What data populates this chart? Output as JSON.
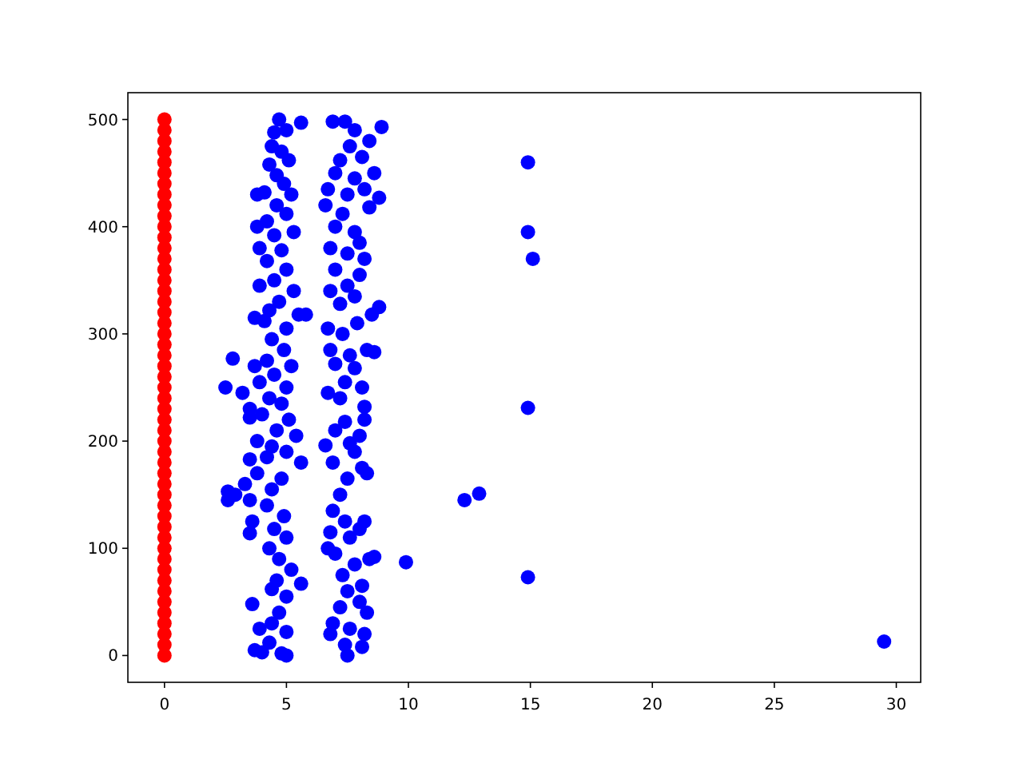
{
  "chart_data": {
    "type": "scatter",
    "xlim": [
      -1.5,
      31
    ],
    "ylim": [
      -25,
      525
    ],
    "xticks": [
      0,
      5,
      10,
      15,
      20,
      25,
      30
    ],
    "yticks": [
      0,
      100,
      200,
      300,
      400,
      500
    ],
    "grid": false,
    "marker": "circle",
    "series": [
      {
        "color": "#0000ff",
        "x": [
          4.7,
          4.5,
          5.0,
          5.6,
          4.4,
          4.8,
          4.3,
          5.1,
          4.6,
          4.9,
          5.2,
          4.1,
          3.8,
          4.6,
          5.0,
          4.2,
          3.8,
          4.5,
          5.3,
          3.9,
          4.8,
          4.2,
          5.0,
          4.5,
          3.9,
          5.3,
          4.7,
          4.3,
          5.5,
          5.8,
          3.7,
          4.1,
          5.0,
          4.4,
          4.9,
          4.2,
          5.2,
          3.7,
          2.8,
          4.5,
          3.9,
          5.0,
          2.5,
          3.2,
          4.3,
          4.8,
          3.5,
          4.0,
          5.1,
          3.5,
          4.6,
          5.4,
          3.8,
          4.4,
          5.0,
          4.2,
          3.5,
          5.6,
          3.8,
          4.8,
          3.3,
          4.4,
          2.6,
          2.9,
          3.5,
          2.6,
          4.2,
          4.9,
          3.6,
          4.5,
          3.5,
          5.0,
          4.3,
          4.7,
          5.2,
          4.6,
          5.6,
          4.4,
          5.0,
          3.6,
          4.7,
          4.4,
          5.0,
          3.9,
          4.3,
          3.7,
          4.0,
          4.8,
          5.0,
          6.9,
          7.4,
          7.8,
          8.9,
          8.4,
          7.6,
          7.2,
          8.1,
          7.0,
          7.8,
          8.6,
          6.7,
          7.5,
          8.2,
          8.8,
          6.6,
          7.3,
          8.4,
          7.0,
          7.8,
          8.0,
          6.8,
          7.5,
          8.2,
          7.0,
          8.0,
          7.5,
          6.8,
          7.8,
          7.2,
          8.8,
          8.5,
          7.9,
          6.7,
          7.3,
          6.8,
          7.6,
          8.3,
          8.6,
          7.0,
          7.8,
          7.4,
          8.1,
          6.7,
          7.2,
          8.2,
          8.2,
          7.4,
          7.0,
          8.0,
          7.6,
          6.6,
          7.8,
          6.9,
          8.1,
          7.5,
          8.3,
          7.2,
          6.9,
          7.4,
          8.2,
          6.8,
          7.6,
          8.0,
          6.7,
          7.0,
          8.4,
          8.6,
          7.8,
          7.3,
          8.1,
          7.5,
          8.0,
          7.2,
          8.3,
          6.9,
          7.6,
          8.2,
          6.8,
          7.4,
          8.1,
          7.5,
          9.9,
          12.3,
          12.9,
          14.9,
          14.9,
          15.1,
          14.9,
          14.9,
          29.5
        ],
        "values": [
          500,
          488,
          490,
          497,
          475,
          470,
          458,
          462,
          448,
          440,
          430,
          432,
          430,
          420,
          412,
          405,
          400,
          392,
          395,
          380,
          378,
          368,
          360,
          350,
          345,
          340,
          330,
          322,
          318,
          318,
          315,
          312,
          305,
          295,
          285,
          275,
          270,
          270,
          277,
          262,
          255,
          250,
          250,
          245,
          240,
          235,
          230,
          225,
          220,
          222,
          210,
          205,
          200,
          195,
          190,
          185,
          183,
          180,
          170,
          165,
          160,
          155,
          153,
          150,
          145,
          145,
          140,
          130,
          125,
          118,
          114,
          110,
          100,
          90,
          80,
          70,
          67,
          62,
          55,
          48,
          40,
          30,
          22,
          25,
          12,
          5,
          3,
          2,
          0,
          498,
          498,
          490,
          493,
          480,
          475,
          462,
          465,
          450,
          445,
          450,
          435,
          430,
          435,
          427,
          420,
          412,
          418,
          400,
          395,
          385,
          380,
          375,
          370,
          360,
          355,
          345,
          340,
          335,
          328,
          325,
          318,
          310,
          305,
          300,
          285,
          280,
          285,
          283,
          272,
          268,
          255,
          250,
          245,
          240,
          232,
          220,
          218,
          210,
          205,
          198,
          196,
          190,
          180,
          175,
          165,
          170,
          150,
          135,
          125,
          125,
          115,
          110,
          118,
          100,
          95,
          90,
          92,
          85,
          75,
          65,
          60,
          50,
          45,
          40,
          30,
          25,
          20,
          20,
          10,
          8,
          0,
          87,
          145,
          151,
          460,
          395,
          370,
          231,
          73,
          13
        ]
      },
      {
        "color": "#ff0000",
        "x": [
          0,
          0,
          0,
          0,
          0,
          0,
          0,
          0,
          0,
          0,
          0,
          0,
          0,
          0,
          0,
          0,
          0,
          0,
          0,
          0,
          0,
          0,
          0,
          0,
          0,
          0,
          0,
          0,
          0,
          0,
          0,
          0,
          0,
          0,
          0,
          0,
          0,
          0,
          0,
          0,
          0,
          0,
          0,
          0,
          0,
          0,
          0,
          0,
          0,
          0,
          0
        ],
        "values": [
          0,
          10,
          20,
          30,
          40,
          50,
          60,
          70,
          80,
          90,
          100,
          110,
          120,
          130,
          140,
          150,
          160,
          170,
          180,
          190,
          200,
          210,
          220,
          230,
          240,
          250,
          260,
          270,
          280,
          290,
          300,
          310,
          320,
          330,
          340,
          350,
          360,
          370,
          380,
          390,
          400,
          410,
          420,
          430,
          440,
          450,
          460,
          470,
          480,
          490,
          500
        ]
      }
    ]
  }
}
